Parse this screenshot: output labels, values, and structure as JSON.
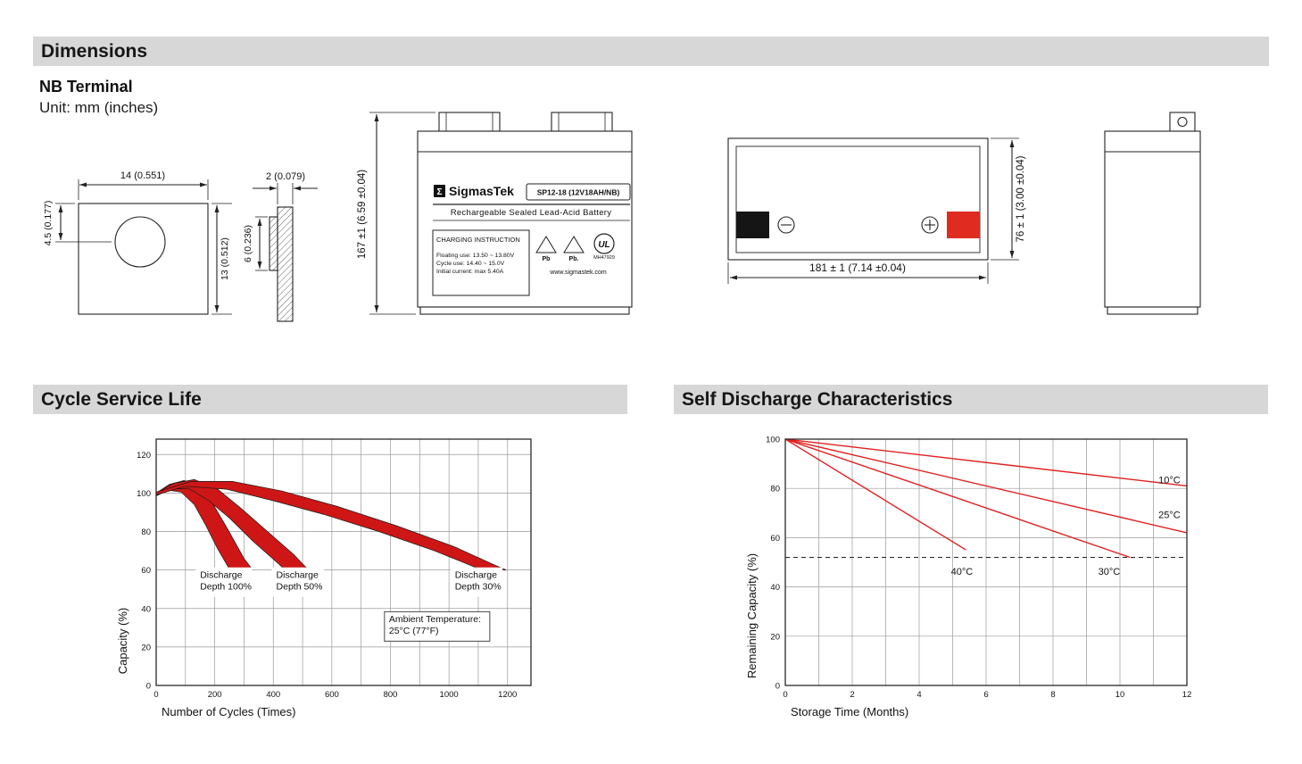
{
  "colors": {
    "header_bg": "#d7d7d7",
    "negative_terminal": "#151515",
    "positive_terminal": "#e02b20"
  },
  "sections": {
    "dimensions": "Dimensions",
    "cycle_life": "Cycle Service Life",
    "self_discharge": "Self Discharge Characteristics"
  },
  "dimensions_block": {
    "terminal_title": "NB Terminal",
    "unit": "Unit: mm (inches)",
    "labels": {
      "front_width": "14 (0.551)",
      "front_hole_offset": "4.5 (0.177)",
      "front_height": "13 (0.512)",
      "side_thickness": "2 (0.079)",
      "side_height": "6 (0.236)",
      "battery_height": "167 ±1 (6.59 ±0.04)",
      "battery_length": "181 ± 1 (7.14 ±0.04)",
      "battery_width": "76 ± 1 (3.00 ±0.04)"
    }
  },
  "battery_label": {
    "sigma": "Σ",
    "brand": "SigmasTek",
    "model": "SP12-18 (12V18AH/NB)",
    "type_line": "Rechargeable Sealed Lead-Acid Battery",
    "charging_title": "CHARGING INSTRUCTION",
    "charging_lines": [
      "Floating use: 13.50 ~ 13.80V",
      "Cycle use: 14.40 ~ 15.0V",
      "Initial current: max 5.40A"
    ],
    "pb1": "Pb",
    "pb2": "Pb.",
    "ul_text": "UL",
    "ul_code": "MH47929",
    "website": "www.sigmastek.com"
  },
  "chart_data": [
    {
      "type": "area",
      "title": "Cycle Service Life",
      "xlabel": "Number of Cycles (Times)",
      "ylabel": "Capacity (%)",
      "xlim": [
        0,
        1280
      ],
      "ylim": [
        0,
        128
      ],
      "xticks": [
        0,
        200,
        400,
        600,
        800,
        1000,
        1200
      ],
      "yticks": [
        0,
        20,
        40,
        60,
        80,
        100,
        120
      ],
      "x_grid_step": 100,
      "grid": true,
      "legend_position": "none",
      "band_color": "#cf1616",
      "bands": [
        {
          "name": "Discharge Depth 100%",
          "upper": [
            [
              0,
              100
            ],
            [
              45,
              104.5
            ],
            [
              95,
              106.5
            ],
            [
              145,
              103
            ],
            [
              195,
              94
            ],
            [
              245,
              81
            ],
            [
              300,
              66
            ],
            [
              330,
              60
            ]
          ],
          "lower": [
            [
              0,
              98.5
            ],
            [
              40,
              101.5
            ],
            [
              85,
              100.5
            ],
            [
              130,
              94
            ],
            [
              170,
              83
            ],
            [
              210,
              71
            ],
            [
              248,
              61
            ],
            [
              255,
              60
            ]
          ]
        },
        {
          "name": "Discharge Depth 50%",
          "upper": [
            [
              0,
              100
            ],
            [
              60,
              105
            ],
            [
              130,
              107
            ],
            [
              210,
              102
            ],
            [
              290,
              92
            ],
            [
              380,
              80
            ],
            [
              470,
              68
            ],
            [
              520,
              60
            ]
          ],
          "lower": [
            [
              0,
              98.5
            ],
            [
              50,
              102
            ],
            [
              110,
              102.5
            ],
            [
              180,
              96
            ],
            [
              250,
              87
            ],
            [
              330,
              75
            ],
            [
              420,
              63
            ],
            [
              440,
              60
            ]
          ]
        },
        {
          "name": "Discharge Depth 30%",
          "upper": [
            [
              0,
              100.5
            ],
            [
              120,
              106
            ],
            [
              260,
              106
            ],
            [
              430,
              101
            ],
            [
              620,
              93
            ],
            [
              820,
              83
            ],
            [
              1020,
              72
            ],
            [
              1150,
              63
            ],
            [
              1195,
              60
            ]
          ],
          "lower": [
            [
              0,
              99
            ],
            [
              100,
              103.5
            ],
            [
              240,
              102
            ],
            [
              400,
              96
            ],
            [
              570,
              89
            ],
            [
              760,
              80
            ],
            [
              950,
              70
            ],
            [
              1080,
              62
            ],
            [
              1110,
              60
            ]
          ]
        }
      ],
      "annotations": [
        {
          "text": "Discharge\nDepth 100%",
          "x": 150,
          "y": 56
        },
        {
          "text": "Discharge\nDepth 50%",
          "x": 410,
          "y": 56
        },
        {
          "text": "Discharge\nDepth 30%",
          "x": 1020,
          "y": 56
        },
        {
          "text": "Ambient Temperature:\n25°C (77°F)",
          "x": 795,
          "y": 33,
          "box": true
        }
      ]
    },
    {
      "type": "line",
      "title": "Self Discharge Characteristics",
      "xlabel": "Storage Time (Months)",
      "ylabel": "Remaining Capacity (%)",
      "xlim": [
        0,
        12
      ],
      "ylim": [
        0,
        100
      ],
      "xticks": [
        0,
        2,
        4,
        6,
        8,
        10,
        12
      ],
      "yticks": [
        0,
        20,
        40,
        60,
        80,
        100
      ],
      "x_grid_step": 1,
      "grid": true,
      "legend_position": "inline-labels",
      "line_color": "#e02020",
      "dashed_line_y": 52,
      "series": [
        {
          "name": "10°C",
          "points": [
            [
              0,
              100
            ],
            [
              12,
              81
            ]
          ],
          "label": {
            "x": 11.15,
            "y": 82
          }
        },
        {
          "name": "25°C",
          "points": [
            [
              0,
              100
            ],
            [
              12,
              62
            ]
          ],
          "label": {
            "x": 11.15,
            "y": 68
          }
        },
        {
          "name": "30°C",
          "points": [
            [
              0,
              100
            ],
            [
              10.3,
              52
            ]
          ],
          "label": {
            "x": 9.35,
            "y": 45
          }
        },
        {
          "name": "40°C",
          "points": [
            [
              0,
              100
            ],
            [
              5.4,
              55
            ]
          ],
          "label": {
            "x": 4.95,
            "y": 45
          }
        }
      ]
    }
  ]
}
